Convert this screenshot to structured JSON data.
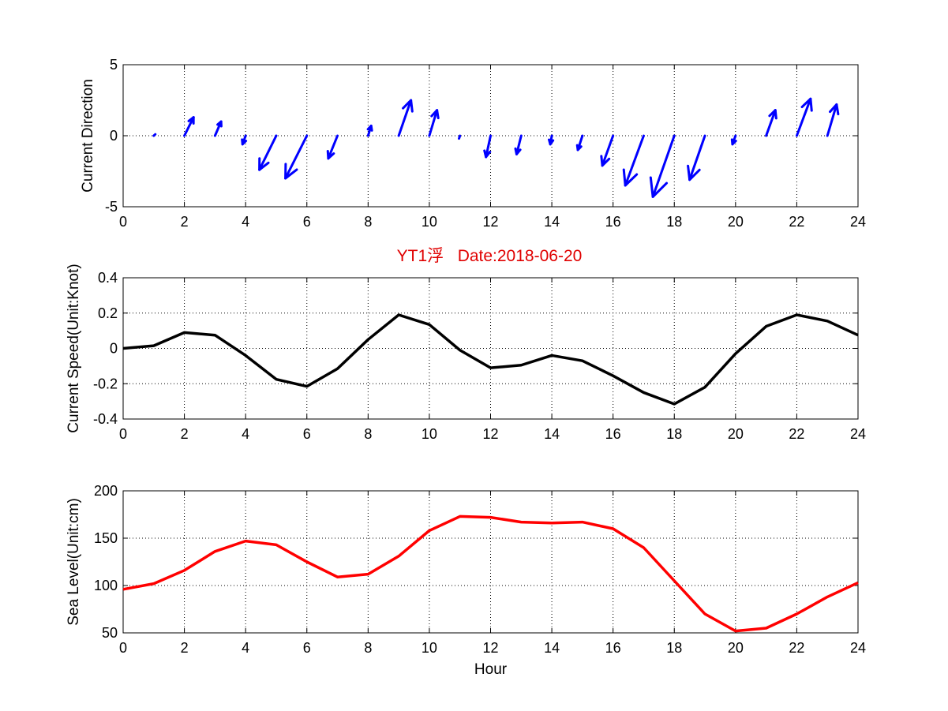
{
  "figure_title": "YT1浮   Date:2018-06-20",
  "chart_data": [
    {
      "type": "quiver",
      "ylabel": "Current Direction",
      "xlabel": "",
      "xlim": [
        0,
        24
      ],
      "ylim": [
        -5,
        5
      ],
      "xticks": [
        0,
        2,
        4,
        6,
        8,
        10,
        12,
        14,
        16,
        18,
        20,
        22,
        24
      ],
      "yticks": [
        -5,
        0,
        5
      ],
      "grid": true,
      "color": "#0000ff",
      "series": [
        {
          "x": [
            1,
            2,
            3,
            4,
            5,
            6,
            7,
            8,
            9,
            10,
            11,
            12,
            13,
            14,
            15,
            16,
            17,
            18,
            19,
            20,
            21,
            22,
            23
          ],
          "u": [
            0.05,
            0.3,
            0.2,
            -0.1,
            -0.55,
            -0.7,
            -0.3,
            0.1,
            0.4,
            0.25,
            -0.03,
            -0.15,
            -0.15,
            -0.05,
            -0.15,
            -0.35,
            -0.6,
            -0.7,
            -0.5,
            -0.1,
            0.3,
            0.45,
            0.3
          ],
          "v": [
            0.1,
            1.3,
            1.0,
            -0.6,
            -2.4,
            -3.0,
            -1.6,
            0.7,
            2.5,
            1.8,
            -0.2,
            -1.5,
            -1.3,
            -0.6,
            -1.0,
            -2.1,
            -3.5,
            -4.3,
            -3.1,
            -0.6,
            1.8,
            2.6,
            2.2
          ]
        }
      ]
    },
    {
      "type": "line",
      "ylabel": "Current Speed(Unit:Knot)",
      "xlabel": "",
      "xlim": [
        0,
        24
      ],
      "ylim": [
        -0.4,
        0.4
      ],
      "xticks": [
        0,
        2,
        4,
        6,
        8,
        10,
        12,
        14,
        16,
        18,
        20,
        22,
        24
      ],
      "yticks": [
        -0.4,
        -0.2,
        0,
        0.2,
        0.4
      ],
      "ytick_labels": [
        "-0.4",
        "-0.2",
        "0",
        "0.2",
        "0.4"
      ],
      "grid": true,
      "color": "#000000",
      "series": [
        {
          "x": [
            0,
            1,
            2,
            3,
            4,
            5,
            6,
            7,
            8,
            9,
            10,
            11,
            12,
            13,
            14,
            15,
            16,
            17,
            18,
            19,
            20,
            21,
            22,
            23,
            24
          ],
          "values": [
            0.0,
            0.015,
            0.09,
            0.075,
            -0.04,
            -0.175,
            -0.215,
            -0.115,
            0.05,
            0.19,
            0.135,
            -0.01,
            -0.11,
            -0.095,
            -0.04,
            -0.07,
            -0.155,
            -0.25,
            -0.315,
            -0.22,
            -0.03,
            0.125,
            0.19,
            0.155,
            0.075
          ]
        }
      ]
    },
    {
      "type": "line",
      "ylabel": "Sea Level(Unit:cm)",
      "xlabel": "Hour",
      "xlim": [
        0,
        24
      ],
      "ylim": [
        50,
        200
      ],
      "xticks": [
        0,
        2,
        4,
        6,
        8,
        10,
        12,
        14,
        16,
        18,
        20,
        22,
        24
      ],
      "yticks": [
        50,
        100,
        150,
        200
      ],
      "grid": true,
      "color": "#ff0000",
      "series": [
        {
          "x": [
            0,
            1,
            2,
            3,
            4,
            5,
            6,
            7,
            8,
            9,
            10,
            11,
            12,
            13,
            14,
            15,
            16,
            17,
            18,
            19,
            20,
            21,
            22,
            23,
            24
          ],
          "values": [
            96,
            102,
            116,
            136,
            147,
            143,
            125,
            109,
            112,
            131,
            158,
            173,
            172,
            167,
            166,
            167,
            160,
            140,
            105,
            70,
            52,
            55,
            70,
            88,
            103
          ]
        }
      ]
    }
  ]
}
